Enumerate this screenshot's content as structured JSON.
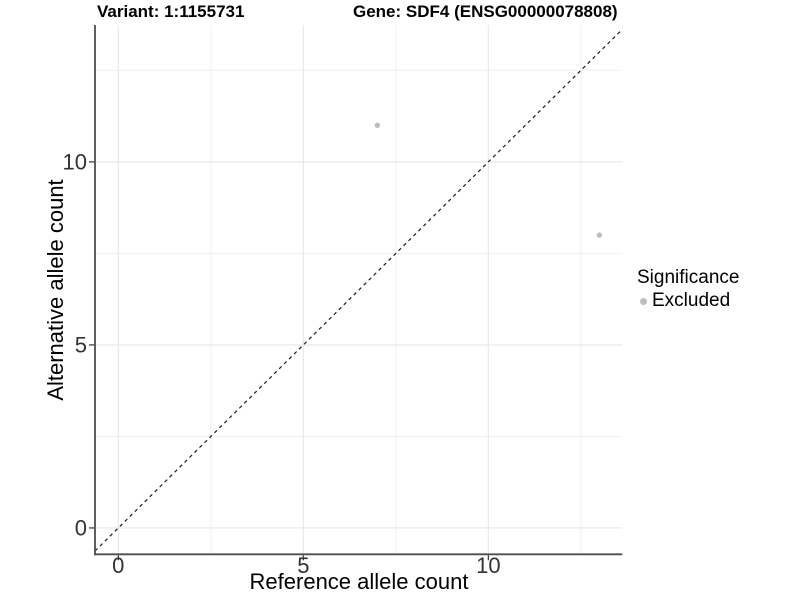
{
  "chart_data": {
    "type": "scatter",
    "title_left": "Variant: 1:1155731",
    "title_right": "Gene: SDF4 (ENSG00000078808)",
    "xlabel": "Reference allele count",
    "ylabel": "Alternative allele count",
    "xlim": [
      -0.63,
      13.62
    ],
    "ylim": [
      -0.72,
      13.74
    ],
    "x_major_ticks": [
      0,
      5,
      10
    ],
    "y_major_ticks": [
      0,
      5,
      10
    ],
    "x_minor_gridlines": [
      2.5,
      7.5,
      12.5
    ],
    "y_minor_gridlines": [
      2.5,
      7.5,
      12.5
    ],
    "grid": true,
    "series": [
      {
        "name": "Excluded",
        "marker": "circle",
        "color": "#BEBEBE",
        "points": [
          {
            "x": 7,
            "y": 11
          },
          {
            "x": 13,
            "y": 8
          }
        ]
      }
    ],
    "reference_line": {
      "type": "identity",
      "equation": "y = x",
      "style": "dashed",
      "color": "#1a1a1a"
    },
    "legend": {
      "position": "right",
      "title": "Significance",
      "items": [
        {
          "label": "Excluded",
          "marker": "circle",
          "color": "#BEBEBE"
        }
      ]
    },
    "colors": {
      "background": "#FFFFFF",
      "point": "#BEBEBE",
      "grid_major": "#E7E7E7",
      "grid_minor": "#F0F0F0",
      "axis_line": "#4D4D4D",
      "tick_mark": "#333333",
      "tick_label": "#333333",
      "text": "#000000"
    }
  }
}
